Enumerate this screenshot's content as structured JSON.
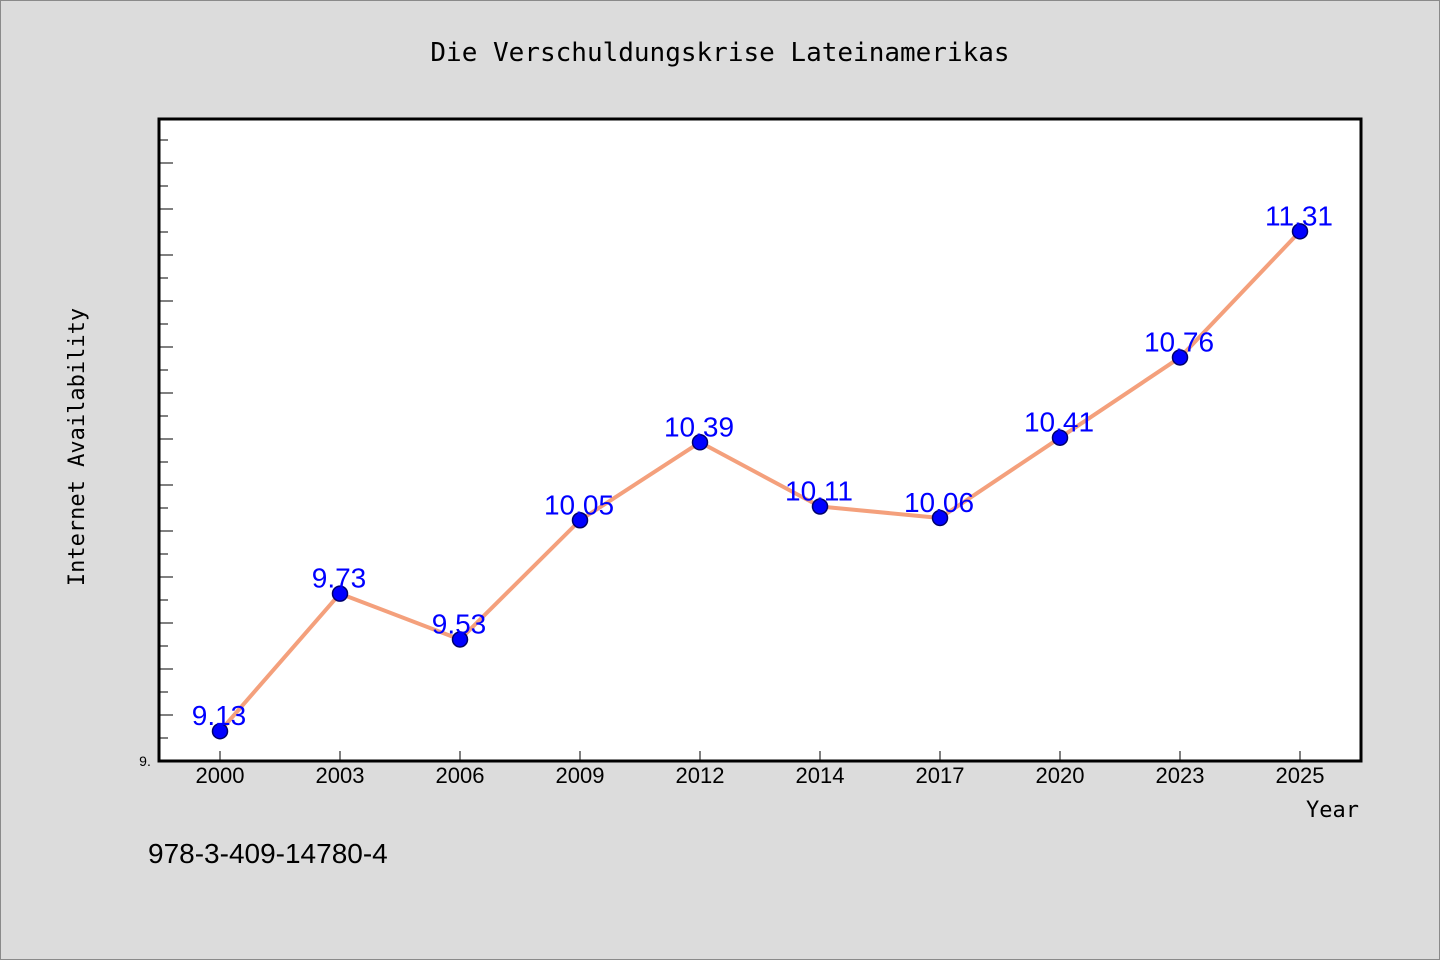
{
  "chart_data": {
    "type": "line",
    "title": "Die Verschuldungskrise Lateinamerikas",
    "xlabel": "Year",
    "ylabel": "Internet Availability",
    "categories": [
      "2000",
      "2003",
      "2006",
      "2009",
      "2012",
      "2014",
      "2017",
      "2020",
      "2023",
      "2025"
    ],
    "series": [
      {
        "values": [
          9.13,
          9.73,
          9.53,
          10.05,
          10.39,
          10.11,
          10.06,
          10.41,
          10.76,
          11.31
        ],
        "data_labels": [
          "9.13",
          "9.73",
          "9.53",
          "10.05",
          "10.39",
          "10.11",
          "10.06",
          "10.41",
          "10.76",
          "11.31"
        ]
      }
    ],
    "ylim": [
      9.0,
      11.8
    ],
    "y_tick_label": "9.",
    "grid": false,
    "legend": "none",
    "colors": {
      "line": "#f4a07c",
      "marker": "#0000ff",
      "marker_stroke": "#00006a",
      "data_label": "#0000ff",
      "plot_background": "#ffffff",
      "page_background": "#dcdcdc"
    }
  },
  "footer": {
    "isbn": "978-3-409-14780-4"
  }
}
